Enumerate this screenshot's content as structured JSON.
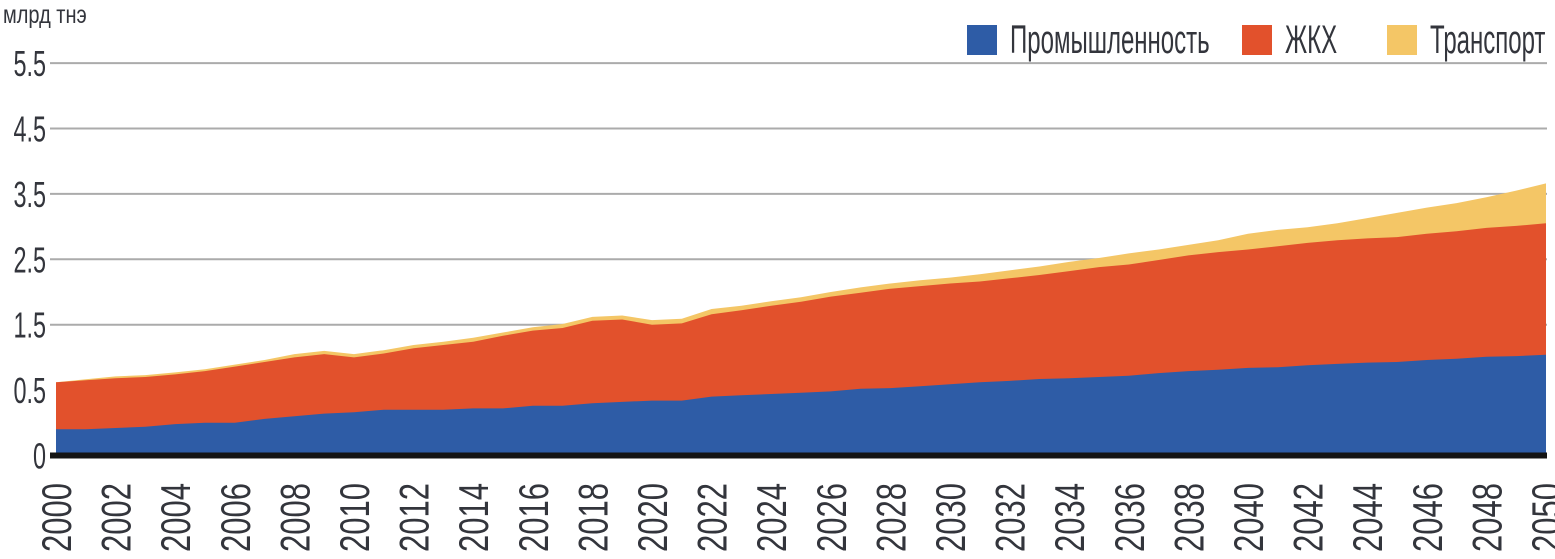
{
  "axis": {
    "unit_label": "млрд тнэ"
  },
  "style": {
    "grid_color": "#ABABAB",
    "axis_line_color": "#141414",
    "text_color": "#33353C",
    "background": "#ffffff"
  },
  "chart_data": {
    "type": "area",
    "stacked": true,
    "title": "",
    "xlabel": "",
    "ylabel": "млрд тнэ",
    "grid": true,
    "legend_position": "top-right",
    "y_ticks": [
      0,
      0.5,
      1.5,
      2.5,
      3.5,
      4.5,
      5.5
    ],
    "y_tick_note": "tick labels are equally spaced on the axis",
    "x_tick_labels": [
      "2000",
      "2002",
      "2004",
      "2006",
      "2008",
      "2010",
      "2012",
      "2014",
      "2016",
      "2018",
      "2020",
      "2022",
      "2024",
      "2026",
      "2028",
      "2030",
      "2032",
      "2034",
      "2036",
      "2038",
      "2040",
      "2042",
      "2044",
      "2046",
      "2048",
      "2050"
    ],
    "years": [
      2000,
      2001,
      2002,
      2003,
      2004,
      2005,
      2006,
      2007,
      2008,
      2009,
      2010,
      2011,
      2012,
      2013,
      2014,
      2015,
      2016,
      2017,
      2018,
      2019,
      2020,
      2021,
      2022,
      2023,
      2024,
      2025,
      2026,
      2027,
      2028,
      2029,
      2030,
      2031,
      2032,
      2033,
      2034,
      2035,
      2036,
      2037,
      2038,
      2039,
      2040,
      2041,
      2042,
      2043,
      2044,
      2045,
      2046,
      2047,
      2048,
      2049,
      2050
    ],
    "series": [
      {
        "name": "Промышленность",
        "color": "#2E5CA6",
        "values": [
          0.2,
          0.2,
          0.21,
          0.22,
          0.24,
          0.25,
          0.25,
          0.28,
          0.3,
          0.32,
          0.33,
          0.35,
          0.35,
          0.35,
          0.36,
          0.36,
          0.38,
          0.38,
          0.4,
          0.41,
          0.42,
          0.42,
          0.45,
          0.46,
          0.47,
          0.48,
          0.49,
          0.52,
          0.53,
          0.56,
          0.59,
          0.62,
          0.64,
          0.67,
          0.68,
          0.7,
          0.72,
          0.76,
          0.79,
          0.81,
          0.84,
          0.85,
          0.88,
          0.9,
          0.92,
          0.93,
          0.96,
          0.98,
          1.01,
          1.02,
          1.04
        ]
      },
      {
        "name": "ЖКХ",
        "color": "#E2512C",
        "values": [
          0.42,
          0.45,
          0.47,
          0.48,
          0.5,
          0.54,
          0.61,
          0.65,
          0.7,
          0.73,
          0.67,
          0.71,
          0.79,
          0.84,
          0.88,
          0.97,
          1.03,
          1.07,
          1.16,
          1.17,
          1.08,
          1.1,
          1.21,
          1.26,
          1.32,
          1.37,
          1.44,
          1.47,
          1.52,
          1.53,
          1.54,
          1.54,
          1.57,
          1.59,
          1.64,
          1.68,
          1.7,
          1.73,
          1.77,
          1.8,
          1.81,
          1.85,
          1.87,
          1.89,
          1.9,
          1.91,
          1.93,
          1.95,
          1.97,
          1.99,
          2.01
        ]
      },
      {
        "name": "Транспорт",
        "color": "#F4C666",
        "values": [
          0.0,
          0.015,
          0.03,
          0.03,
          0.03,
          0.03,
          0.03,
          0.03,
          0.05,
          0.05,
          0.05,
          0.05,
          0.05,
          0.05,
          0.06,
          0.05,
          0.05,
          0.06,
          0.06,
          0.06,
          0.07,
          0.07,
          0.08,
          0.07,
          0.07,
          0.07,
          0.07,
          0.08,
          0.08,
          0.09,
          0.09,
          0.11,
          0.12,
          0.13,
          0.14,
          0.14,
          0.17,
          0.16,
          0.16,
          0.18,
          0.24,
          0.25,
          0.24,
          0.26,
          0.31,
          0.37,
          0.4,
          0.43,
          0.47,
          0.54,
          0.61
        ]
      }
    ]
  }
}
